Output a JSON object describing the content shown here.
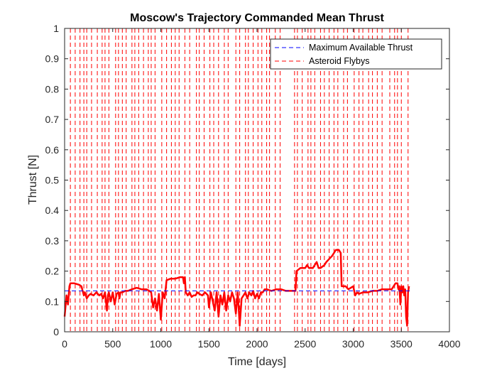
{
  "chart_data": {
    "type": "line",
    "title": "Moscow's Trajectory Commanded Mean Thrust",
    "xlabel": "Time [days]",
    "ylabel": "Thrust [N]",
    "xlim": [
      0,
      4000
    ],
    "ylim": [
      0,
      1
    ],
    "xticks": [
      0,
      500,
      1000,
      1500,
      2000,
      2500,
      3000,
      3500,
      4000
    ],
    "yticks": [
      0,
      0.1,
      0.2,
      0.3,
      0.4,
      0.5,
      0.6,
      0.7,
      0.8,
      0.9,
      1
    ],
    "xtick_labels": [
      "0",
      "500",
      "1000",
      "1500",
      "2000",
      "2500",
      "3000",
      "3500",
      "4000"
    ],
    "ytick_labels": [
      "0",
      "0.1",
      "0.2",
      "0.3",
      "0.4",
      "0.5",
      "0.6",
      "0.7",
      "0.8",
      "0.9",
      "1"
    ],
    "grid": false,
    "legend_position": "top-right",
    "colors": {
      "thrust": "#ff0000",
      "max_thrust": "#0000ff",
      "flyby": "#ff0000",
      "axis": "#262626"
    },
    "series": [
      {
        "name": "",
        "style": "solid",
        "x": [
          0,
          20,
          35,
          50,
          60,
          80,
          100,
          150,
          175,
          200,
          210,
          230,
          250,
          270,
          300,
          330,
          360,
          380,
          400,
          420,
          440,
          450,
          460,
          480,
          500,
          520,
          540,
          560,
          570,
          580,
          600,
          630,
          660,
          700,
          750,
          800,
          850,
          880,
          900,
          920,
          940,
          960,
          980,
          1000,
          1020,
          1040,
          1060,
          1100,
          1150,
          1200,
          1230,
          1240,
          1250,
          1260,
          1280,
          1300,
          1320,
          1340,
          1360,
          1380,
          1400,
          1430,
          1460,
          1490,
          1500,
          1520,
          1540,
          1560,
          1580,
          1600,
          1620,
          1640,
          1660,
          1680,
          1700,
          1720,
          1740,
          1760,
          1780,
          1800,
          1820,
          1840,
          1860,
          1880,
          1900,
          1920,
          1940,
          1960,
          1980,
          2000,
          2020,
          2040,
          2060,
          2080,
          2100,
          2150,
          2200,
          2250,
          2300,
          2350,
          2400,
          2410,
          2450,
          2500,
          2520,
          2540,
          2580,
          2600,
          2620,
          2640,
          2660,
          2700,
          2720,
          2750,
          2780,
          2800,
          2820,
          2850,
          2870,
          2880,
          2890,
          2920,
          2950,
          3000,
          3020,
          3040,
          3060,
          3100,
          3150,
          3200,
          3250,
          3300,
          3350,
          3380,
          3400,
          3420,
          3440,
          3460,
          3470,
          3480,
          3490,
          3500,
          3510,
          3520,
          3530,
          3540,
          3550,
          3560,
          3570,
          3580
        ],
        "values": [
          0.05,
          0.12,
          0.09,
          0.15,
          0.16,
          0.16,
          0.16,
          0.155,
          0.15,
          0.12,
          0.13,
          0.11,
          0.12,
          0.125,
          0.12,
          0.13,
          0.12,
          0.125,
          0.11,
          0.13,
          0.07,
          0.12,
          0.13,
          0.1,
          0.13,
          0.09,
          0.125,
          0.13,
          0.11,
          0.13,
          0.13,
          0.135,
          0.135,
          0.14,
          0.145,
          0.14,
          0.14,
          0.135,
          0.13,
          0.08,
          0.11,
          0.07,
          0.125,
          0.04,
          0.13,
          0.11,
          0.17,
          0.175,
          0.175,
          0.18,
          0.18,
          0.16,
          0.18,
          0.13,
          0.12,
          0.13,
          0.115,
          0.12,
          0.12,
          0.13,
          0.125,
          0.12,
          0.13,
          0.12,
          0.08,
          0.13,
          0.1,
          0.07,
          0.13,
          0.05,
          0.12,
          0.09,
          0.13,
          0.07,
          0.12,
          0.1,
          0.13,
          0.11,
          0.06,
          0.13,
          0.02,
          0.11,
          0.12,
          0.13,
          0.11,
          0.13,
          0.12,
          0.135,
          0.11,
          0.125,
          0.11,
          0.13,
          0.13,
          0.14,
          0.14,
          0.135,
          0.14,
          0.14,
          0.135,
          0.135,
          0.135,
          0.2,
          0.21,
          0.21,
          0.22,
          0.21,
          0.21,
          0.22,
          0.23,
          0.21,
          0.21,
          0.22,
          0.23,
          0.24,
          0.25,
          0.26,
          0.27,
          0.27,
          0.26,
          0.15,
          0.15,
          0.15,
          0.14,
          0.15,
          0.12,
          0.13,
          0.125,
          0.13,
          0.13,
          0.135,
          0.135,
          0.14,
          0.14,
          0.14,
          0.14,
          0.15,
          0.16,
          0.16,
          0.14,
          0.15,
          0.09,
          0.15,
          0.13,
          0.15,
          0.12,
          0.14,
          0.05,
          0.02,
          0.13,
          0.15
        ]
      },
      {
        "name": "Maximum Available Thrust",
        "style": "dashed",
        "x": [
          0,
          3600
        ],
        "values": [
          0.135,
          0.135
        ]
      }
    ],
    "flyby_series_name": "Asteroid Flybys",
    "flyby_days": [
      60,
      110,
      160,
      200,
      230,
      280,
      340,
      390,
      420,
      460,
      530,
      560,
      600,
      640,
      700,
      730,
      770,
      820,
      870,
      900,
      940,
      1010,
      1060,
      1110,
      1150,
      1190,
      1250,
      1300,
      1370,
      1400,
      1450,
      1510,
      1550,
      1600,
      1660,
      1700,
      1780,
      1820,
      1880,
      1910,
      1960,
      2010,
      2050,
      2100,
      2130,
      2190,
      2240,
      2390,
      2420,
      2470,
      2530,
      2560,
      2600,
      2660,
      2700,
      2750,
      2800,
      2840,
      2900,
      2940,
      3010,
      3060,
      3100,
      3160,
      3200,
      3250,
      3300,
      3380,
      3430,
      3460,
      3500,
      3570
    ]
  }
}
